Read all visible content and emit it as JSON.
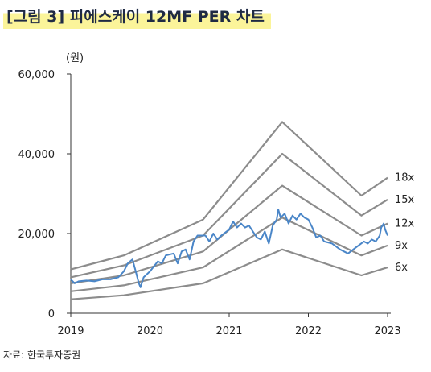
{
  "figure": {
    "title": "[그림 3] 피에스케이 12MF PER 차트",
    "source": "자료: 한국투자증권"
  },
  "chart_data": {
    "type": "line",
    "ylabel": "(원)",
    "ylim": [
      0,
      60000
    ],
    "yticks": [
      "0",
      "20,000",
      "40,000",
      "60,000"
    ],
    "xlim": [
      2019.0,
      2023.0
    ],
    "xticks": [
      "2019",
      "2020",
      "2021",
      "2022",
      "2023"
    ],
    "grid": false,
    "colors": {
      "band": "#8c8c8c",
      "price": "#4a86c8",
      "axis": "#333333"
    },
    "series": [
      {
        "name": "18x",
        "kind": "band",
        "points": [
          [
            2019.0,
            11000
          ],
          [
            2019.67,
            14500
          ],
          [
            2020.67,
            23500
          ],
          [
            2021.67,
            48000
          ],
          [
            2022.67,
            29500
          ],
          [
            2023.0,
            34000
          ]
        ]
      },
      {
        "name": "15x",
        "kind": "band",
        "points": [
          [
            2019.0,
            9000
          ],
          [
            2019.67,
            12000
          ],
          [
            2020.67,
            19500
          ],
          [
            2021.67,
            40000
          ],
          [
            2022.67,
            24500
          ],
          [
            2023.0,
            28500
          ]
        ]
      },
      {
        "name": "12x",
        "kind": "band",
        "points": [
          [
            2019.0,
            7500
          ],
          [
            2019.67,
            9500
          ],
          [
            2020.67,
            15500
          ],
          [
            2021.67,
            32000
          ],
          [
            2022.67,
            19500
          ],
          [
            2023.0,
            22500
          ]
        ]
      },
      {
        "name": "9x",
        "kind": "band",
        "points": [
          [
            2019.0,
            5500
          ],
          [
            2019.67,
            7000
          ],
          [
            2020.67,
            11500
          ],
          [
            2021.67,
            24000
          ],
          [
            2022.67,
            14500
          ],
          [
            2023.0,
            17000
          ]
        ]
      },
      {
        "name": "6x",
        "kind": "band",
        "points": [
          [
            2019.0,
            3500
          ],
          [
            2019.67,
            4500
          ],
          [
            2020.67,
            7500
          ],
          [
            2021.67,
            16000
          ],
          [
            2022.67,
            9500
          ],
          [
            2023.0,
            11500
          ]
        ]
      },
      {
        "name": "",
        "kind": "price",
        "points": [
          [
            2019.0,
            8500
          ],
          [
            2019.05,
            7500
          ],
          [
            2019.1,
            8000
          ],
          [
            2019.2,
            8200
          ],
          [
            2019.3,
            8000
          ],
          [
            2019.4,
            8500
          ],
          [
            2019.5,
            8500
          ],
          [
            2019.6,
            9000
          ],
          [
            2019.67,
            10500
          ],
          [
            2019.72,
            12500
          ],
          [
            2019.78,
            13500
          ],
          [
            2019.82,
            10500
          ],
          [
            2019.86,
            7500
          ],
          [
            2019.88,
            6500
          ],
          [
            2019.92,
            9000
          ],
          [
            2020.0,
            10500
          ],
          [
            2020.1,
            13000
          ],
          [
            2020.15,
            12500
          ],
          [
            2020.2,
            14500
          ],
          [
            2020.3,
            15000
          ],
          [
            2020.35,
            12500
          ],
          [
            2020.4,
            15500
          ],
          [
            2020.45,
            16000
          ],
          [
            2020.5,
            13500
          ],
          [
            2020.55,
            18000
          ],
          [
            2020.6,
            19500
          ],
          [
            2020.7,
            19500
          ],
          [
            2020.75,
            18000
          ],
          [
            2020.8,
            20000
          ],
          [
            2020.85,
            18500
          ],
          [
            2020.9,
            19500
          ],
          [
            2021.0,
            21000
          ],
          [
            2021.05,
            23000
          ],
          [
            2021.1,
            21500
          ],
          [
            2021.15,
            22500
          ],
          [
            2021.2,
            21500
          ],
          [
            2021.25,
            22000
          ],
          [
            2021.3,
            20500
          ],
          [
            2021.35,
            19000
          ],
          [
            2021.4,
            18500
          ],
          [
            2021.45,
            20500
          ],
          [
            2021.5,
            17500
          ],
          [
            2021.55,
            22000
          ],
          [
            2021.6,
            23500
          ],
          [
            2021.62,
            26000
          ],
          [
            2021.65,
            24000
          ],
          [
            2021.7,
            25000
          ],
          [
            2021.75,
            22500
          ],
          [
            2021.8,
            24500
          ],
          [
            2021.85,
            23500
          ],
          [
            2021.9,
            25000
          ],
          [
            2021.95,
            24000
          ],
          [
            2022.0,
            23500
          ],
          [
            2022.05,
            21500
          ],
          [
            2022.1,
            19000
          ],
          [
            2022.15,
            19500
          ],
          [
            2022.2,
            18000
          ],
          [
            2022.3,
            17500
          ],
          [
            2022.4,
            16000
          ],
          [
            2022.5,
            15000
          ],
          [
            2022.6,
            16500
          ],
          [
            2022.7,
            18000
          ],
          [
            2022.75,
            17500
          ],
          [
            2022.8,
            18500
          ],
          [
            2022.85,
            18000
          ],
          [
            2022.9,
            19500
          ],
          [
            2022.92,
            21500
          ],
          [
            2022.95,
            22500
          ],
          [
            2022.97,
            21000
          ],
          [
            2023.0,
            19500
          ]
        ]
      }
    ]
  }
}
